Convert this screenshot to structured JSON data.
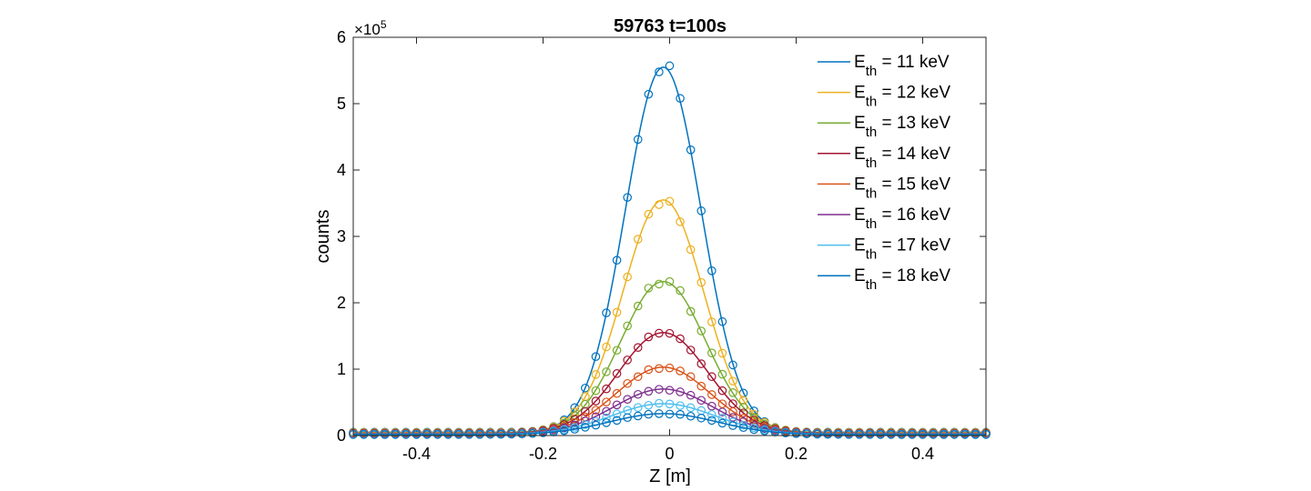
{
  "chart_data": {
    "type": "line",
    "title": "59763 t=100s",
    "xlabel": "Z [m]",
    "ylabel": "counts",
    "xlim": [
      -0.5,
      0.5
    ],
    "ylim": [
      0,
      600000
    ],
    "y_exponent_label": {
      "base": "×10",
      "exp": "5"
    },
    "x_ticks": [
      -0.4,
      -0.2,
      0,
      0.2,
      0.4
    ],
    "x_tick_labels": [
      "-0.4",
      "-0.2",
      "0",
      "0.2",
      "0.4"
    ],
    "y_ticks": [
      0,
      100000,
      200000,
      300000,
      400000,
      500000,
      600000
    ],
    "y_tick_labels": [
      "0",
      "1",
      "2",
      "3",
      "4",
      "5",
      "6"
    ],
    "legend_position": "top-right",
    "series": [
      {
        "name": "E_th = 11 keV",
        "legend": {
          "pre": "E",
          "sub": "th",
          "post": " = 11 keV"
        },
        "color": "#0072BD",
        "peak": 555000,
        "center": -0.01,
        "width": 0.085,
        "base": 5000
      },
      {
        "name": "E_th = 12 keV",
        "legend": {
          "pre": "E",
          "sub": "th",
          "post": " = 12 keV"
        },
        "color": "#EDB120",
        "peak": 355000,
        "center": -0.01,
        "width": 0.09,
        "base": 4500
      },
      {
        "name": "E_th = 13 keV",
        "legend": {
          "pre": "E",
          "sub": "th",
          "post": " = 13 keV"
        },
        "color": "#77AC30",
        "peak": 232000,
        "center": -0.01,
        "width": 0.095,
        "base": 4000
      },
      {
        "name": "E_th = 14 keV",
        "legend": {
          "pre": "E",
          "sub": "th",
          "post": " = 14 keV"
        },
        "color": "#A2142F",
        "peak": 155000,
        "center": -0.01,
        "width": 0.1,
        "base": 3500
      },
      {
        "name": "E_th = 15 keV",
        "legend": {
          "pre": "E",
          "sub": "th",
          "post": " = 15 keV"
        },
        "color": "#D95319",
        "peak": 103000,
        "center": -0.01,
        "width": 0.105,
        "base": 3000
      },
      {
        "name": "E_th = 16 keV",
        "legend": {
          "pre": "E",
          "sub": "th",
          "post": " = 16 keV"
        },
        "color": "#7E2F8E",
        "peak": 70000,
        "center": -0.01,
        "width": 0.11,
        "base": 2500
      },
      {
        "name": "E_th = 17 keV",
        "legend": {
          "pre": "E",
          "sub": "th",
          "post": " = 17 keV"
        },
        "color": "#4DBEEE",
        "peak": 48000,
        "center": -0.01,
        "width": 0.115,
        "base": 2000
      },
      {
        "name": "E_th = 18 keV",
        "legend": {
          "pre": "E",
          "sub": "th",
          "post": " = 18 keV"
        },
        "color": "#0072BD",
        "peak": 33000,
        "center": -0.01,
        "width": 0.12,
        "base": 1500
      }
    ]
  }
}
